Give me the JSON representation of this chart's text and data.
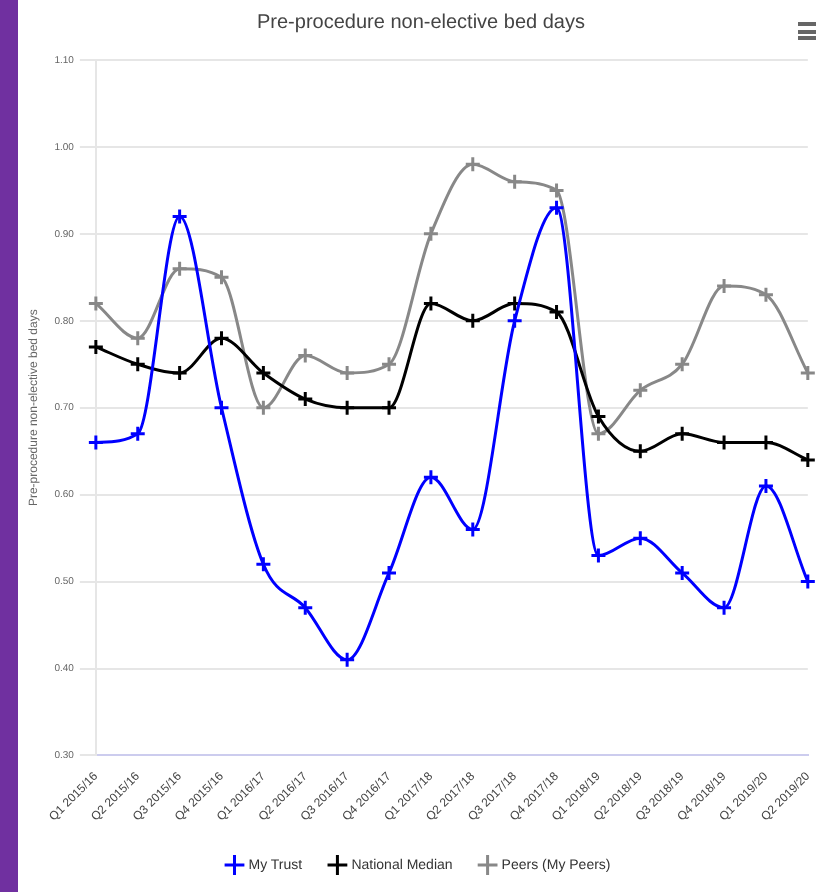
{
  "chart_data": {
    "type": "line",
    "title": "Pre-procedure non-elective bed days",
    "ylabel": "Pre-procedure non-elective bed days",
    "categories": [
      "Q1 2015/16",
      "Q2 2015/16",
      "Q3 2015/16",
      "Q4 2015/16",
      "Q1 2016/17",
      "Q2 2016/17",
      "Q3 2016/17",
      "Q4 2016/17",
      "Q1 2017/18",
      "Q2 2017/18",
      "Q3 2017/18",
      "Q4 2017/18",
      "Q1 2018/19",
      "Q2 2018/19",
      "Q3 2018/19",
      "Q4 2018/19",
      "Q1 2019/20",
      "Q2 2019/20"
    ],
    "series": [
      {
        "name": "My Trust",
        "color": "#0000ff",
        "values": [
          0.66,
          0.67,
          0.92,
          0.7,
          0.52,
          0.47,
          0.41,
          0.51,
          0.62,
          0.56,
          0.8,
          0.93,
          0.53,
          0.55,
          0.51,
          0.47,
          0.61,
          0.5
        ]
      },
      {
        "name": "National Median",
        "color": "#000000",
        "values": [
          0.77,
          0.75,
          0.74,
          0.78,
          0.74,
          0.71,
          0.7,
          0.7,
          0.82,
          0.8,
          0.82,
          0.81,
          0.69,
          0.65,
          0.67,
          0.66,
          0.66,
          0.64
        ]
      },
      {
        "name": "Peers (My Peers)",
        "color": "#888888",
        "values": [
          0.82,
          0.78,
          0.86,
          0.85,
          0.7,
          0.76,
          0.74,
          0.75,
          0.9,
          0.98,
          0.96,
          0.95,
          0.67,
          0.72,
          0.75,
          0.84,
          0.83,
          0.74
        ]
      }
    ],
    "ylim": [
      0.3,
      1.1
    ],
    "yticks": [
      {
        "value": 0.3,
        "label": "0.30"
      },
      {
        "value": 0.4,
        "label": "0.40"
      },
      {
        "value": 0.5,
        "label": "0.50"
      },
      {
        "value": 0.6,
        "label": "0.60"
      },
      {
        "value": 0.7,
        "label": "0.70"
      },
      {
        "value": 0.8,
        "label": "0.80"
      },
      {
        "value": 0.9,
        "label": "0.90"
      },
      {
        "value": 1.0,
        "label": "1.00"
      },
      {
        "value": 1.1,
        "label": "1.10"
      }
    ],
    "grid": "y",
    "legend": "bottom",
    "marker": "cross",
    "line_style": "solid"
  }
}
